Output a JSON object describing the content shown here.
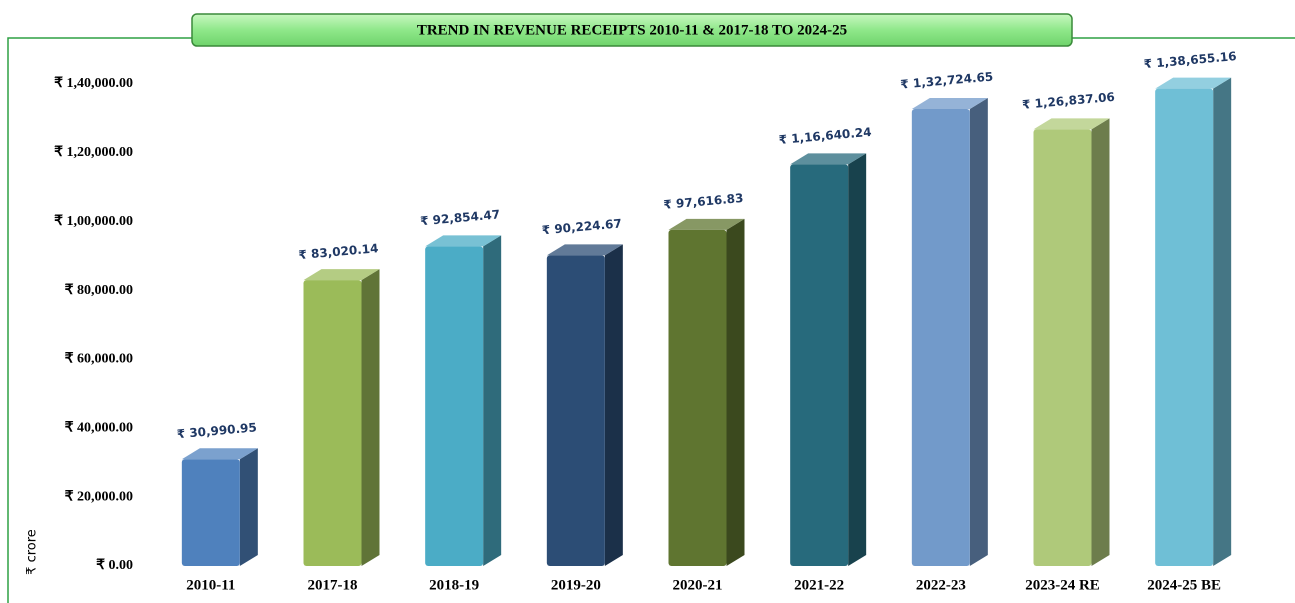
{
  "chart_data": {
    "type": "bar",
    "title": "TREND IN REVENUE RECEIPTS 2010-11 & 2017-18  TO  2024-25",
    "y_label": "₹ crore",
    "categories": [
      "2010-11",
      "2017-18",
      "2018-19",
      "2019-20",
      "2020-21",
      "2021-22",
      "2022-23",
      "2023-24 RE",
      "2024-25 BE"
    ],
    "values": [
      30990.95,
      83020.14,
      92854.47,
      90224.67,
      97616.83,
      116640.24,
      132724.65,
      126837.06,
      138655.16
    ],
    "value_labels": [
      "₹ 30,990.95",
      "₹ 83,020.14",
      "₹ 92,854.47",
      "₹ 90,224.67",
      "₹ 97,616.83",
      "₹ 1,16,640.24",
      "₹ 1,32,724.65",
      "₹ 1,26,837.06",
      "₹ 1,38,655.16"
    ],
    "colors": [
      "#4f81bd",
      "#9bbb59",
      "#4bacc6",
      "#2c4d75",
      "#5f7530",
      "#276a7c",
      "#729aca",
      "#afc97a",
      "#6fbfd6"
    ],
    "ylim": [
      0,
      140000
    ],
    "yticks": [
      {
        "value": 0,
        "label": "₹ 0.00"
      },
      {
        "value": 20000,
        "label": "₹ 20,000.00"
      },
      {
        "value": 40000,
        "label": "₹ 40,000.00"
      },
      {
        "value": 60000,
        "label": "₹ 60,000.00"
      },
      {
        "value": 80000,
        "label": "₹ 80,000.00"
      },
      {
        "value": 100000,
        "label": "₹ 1,00,000.00"
      },
      {
        "value": 120000,
        "label": "₹ 1,20,000.00"
      },
      {
        "value": 140000,
        "label": "₹ 1,40,000.00"
      }
    ]
  }
}
